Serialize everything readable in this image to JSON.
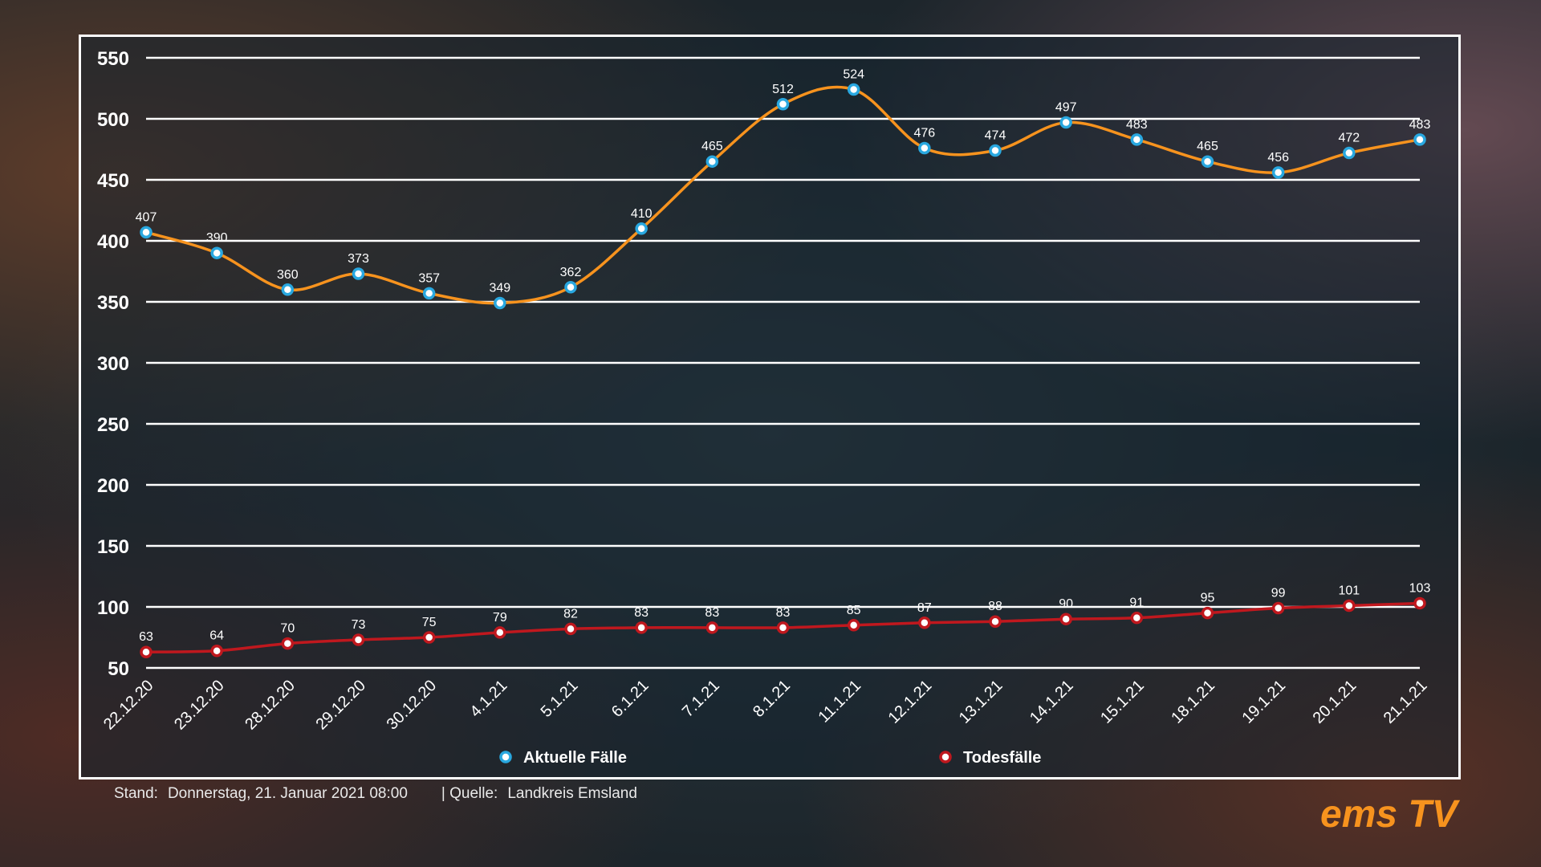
{
  "chart_data": {
    "type": "line",
    "categories": [
      "22.12.20",
      "23.12.20",
      "28.12.20",
      "29.12.20",
      "30.12.20",
      "4.1.21",
      "5.1.21",
      "6.1.21",
      "7.1.21",
      "8.1.21",
      "11.1.21",
      "12.1.21",
      "13.1.21",
      "14.1.21",
      "15.1.21",
      "18.1.21",
      "19.1.21",
      "20.1.21",
      "21.1.21"
    ],
    "series": [
      {
        "name": "Aktuelle Fälle",
        "color": "#f7931e",
        "marker": "#29a8e0",
        "values": [
          407,
          390,
          360,
          373,
          357,
          349,
          362,
          410,
          465,
          512,
          524,
          476,
          474,
          497,
          483,
          465,
          456,
          472,
          483
        ]
      },
      {
        "name": "Todesfälle",
        "color": "#c0181e",
        "marker": "#c0181e",
        "values": [
          63,
          64,
          70,
          73,
          75,
          79,
          82,
          83,
          83,
          83,
          85,
          87,
          88,
          90,
          91,
          95,
          99,
          101,
          103
        ]
      }
    ],
    "yticks": [
      50,
      100,
      150,
      200,
      250,
      300,
      350,
      400,
      450,
      500,
      550
    ],
    "ylim": [
      50,
      550
    ],
    "grid": true,
    "legend": "bottom"
  },
  "footer": {
    "stand_label": "Stand:",
    "stand_value": "Donnerstag, 21. Januar 2021 08:00",
    "source_label": "| Quelle:",
    "source_value": "Landkreis Emsland"
  },
  "logo": {
    "text": "ems TV",
    "color": "#f7931e"
  }
}
